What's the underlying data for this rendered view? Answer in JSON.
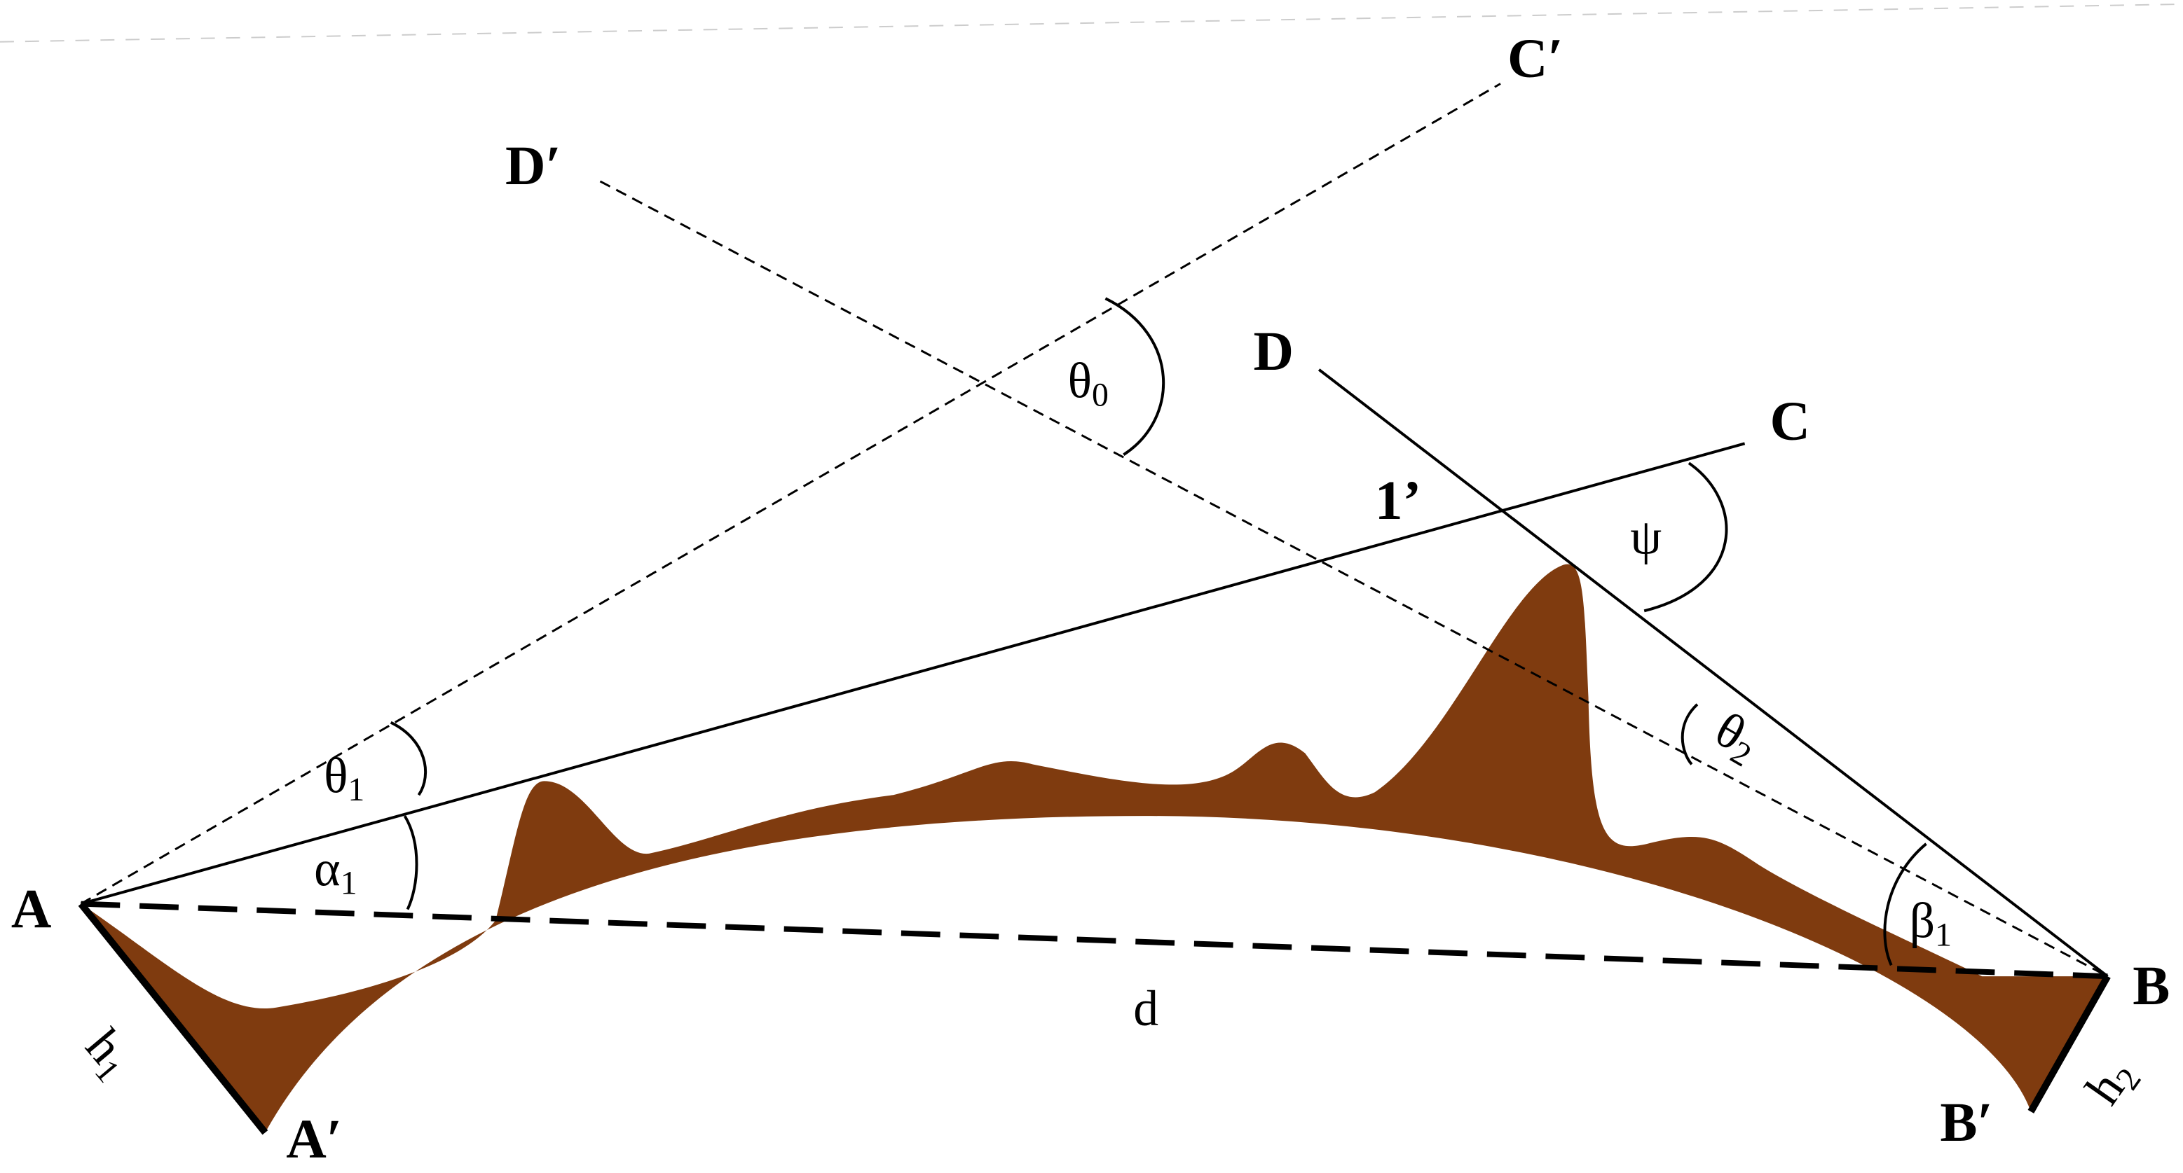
{
  "points": {
    "A": "A",
    "A_prime": "A′",
    "B": "B",
    "B_prime": "B′",
    "C": "C",
    "C_prime": "C′",
    "D": "D",
    "D_prime": "D′",
    "intersection": "1’"
  },
  "distance": "d",
  "heights": {
    "h1": {
      "symbol": "h",
      "subscript": "1"
    },
    "h2": {
      "symbol": "h",
      "subscript": "2"
    }
  },
  "angles": {
    "theta0": {
      "symbol": "θ",
      "subscript": "0"
    },
    "theta1": {
      "symbol": "θ",
      "subscript": "1"
    },
    "theta2": {
      "symbol": "θ",
      "subscript": "2"
    },
    "alpha1": {
      "symbol": "α",
      "subscript": "1"
    },
    "beta1": {
      "symbol": "β",
      "subscript": "1"
    },
    "psi": "ψ"
  }
}
